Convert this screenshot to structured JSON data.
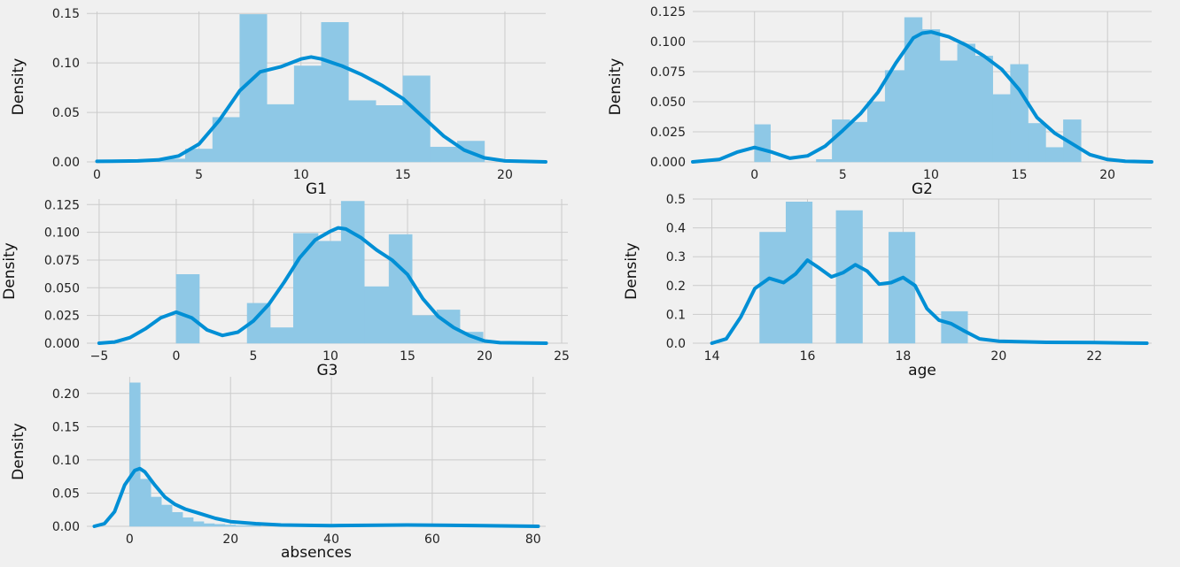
{
  "figure": {
    "background": "#f0f0f0",
    "bar_color": "#8ec8e6",
    "line_color": "#008fd5",
    "grid_color": "#cbcbcb"
  },
  "chart_data": [
    {
      "id": "g1",
      "type": "histogram+kde",
      "xlabel": "G1",
      "ylabel": "Density",
      "xlim": [
        -0.5,
        22
      ],
      "ylim": [
        0,
        0.152
      ],
      "xticks": [
        0,
        5,
        10,
        15,
        20
      ],
      "xtick_labels": [
        "0",
        "5",
        "10",
        "15",
        "20"
      ],
      "yticks": [
        0,
        0.05,
        0.1,
        0.15
      ],
      "ytick_labels": [
        "0.00",
        "0.05",
        "0.10",
        "0.15"
      ],
      "grid": true,
      "bins": [
        {
          "x0": 3,
          "x1": 4.33,
          "h": 0.003
        },
        {
          "x0": 4.33,
          "x1": 5.67,
          "h": 0.013
        },
        {
          "x0": 5.67,
          "x1": 7,
          "h": 0.045
        },
        {
          "x0": 7,
          "x1": 8.33,
          "h": 0.149
        },
        {
          "x0": 8.33,
          "x1": 9.67,
          "h": 0.058
        },
        {
          "x0": 9.67,
          "x1": 11,
          "h": 0.097
        },
        {
          "x0": 11,
          "x1": 12.33,
          "h": 0.141
        },
        {
          "x0": 12.33,
          "x1": 13.67,
          "h": 0.062
        },
        {
          "x0": 13.67,
          "x1": 15,
          "h": 0.057
        },
        {
          "x0": 15,
          "x1": 16.33,
          "h": 0.087
        },
        {
          "x0": 16.33,
          "x1": 17.67,
          "h": 0.015
        },
        {
          "x0": 17.67,
          "x1": 19,
          "h": 0.021
        }
      ],
      "kde": [
        [
          0,
          0.0005
        ],
        [
          2,
          0.001
        ],
        [
          3,
          0.002
        ],
        [
          4,
          0.006
        ],
        [
          5,
          0.018
        ],
        [
          6,
          0.042
        ],
        [
          7,
          0.072
        ],
        [
          8,
          0.091
        ],
        [
          9,
          0.096
        ],
        [
          10,
          0.104
        ],
        [
          10.5,
          0.106
        ],
        [
          11,
          0.104
        ],
        [
          12,
          0.097
        ],
        [
          13,
          0.088
        ],
        [
          14,
          0.077
        ],
        [
          15,
          0.064
        ],
        [
          16,
          0.045
        ],
        [
          17,
          0.026
        ],
        [
          18,
          0.012
        ],
        [
          19,
          0.004
        ],
        [
          20,
          0.001
        ],
        [
          22,
          0
        ]
      ]
    },
    {
      "id": "g2",
      "type": "histogram+kde",
      "xlabel": "G2",
      "ylabel": "Density",
      "xlim": [
        -3.5,
        22.5
      ],
      "ylim": [
        0,
        0.125
      ],
      "xticks": [
        0,
        5,
        10,
        15,
        20
      ],
      "xtick_labels": [
        "0",
        "5",
        "10",
        "15",
        "20"
      ],
      "yticks": [
        0,
        0.025,
        0.05,
        0.075,
        0.1,
        0.125
      ],
      "ytick_labels": [
        "0.000",
        "0.025",
        "0.050",
        "0.075",
        "0.100",
        "0.125"
      ],
      "grid": true,
      "bins": [
        {
          "x0": 0,
          "x1": 0.9,
          "h": 0.031
        },
        {
          "x0": 3.5,
          "x1": 4.4,
          "h": 0.002
        },
        {
          "x0": 4.4,
          "x1": 5.4,
          "h": 0.035
        },
        {
          "x0": 5.4,
          "x1": 6.4,
          "h": 0.033
        },
        {
          "x0": 6.4,
          "x1": 7.4,
          "h": 0.05
        },
        {
          "x0": 7.4,
          "x1": 8.5,
          "h": 0.076
        },
        {
          "x0": 8.5,
          "x1": 9.5,
          "h": 0.12
        },
        {
          "x0": 9.5,
          "x1": 10.5,
          "h": 0.11
        },
        {
          "x0": 10.5,
          "x1": 11.5,
          "h": 0.084
        },
        {
          "x0": 11.5,
          "x1": 12.5,
          "h": 0.098
        },
        {
          "x0": 12.5,
          "x1": 13.5,
          "h": 0.088
        },
        {
          "x0": 13.5,
          "x1": 14.5,
          "h": 0.056
        },
        {
          "x0": 14.5,
          "x1": 15.5,
          "h": 0.081
        },
        {
          "x0": 15.5,
          "x1": 16.5,
          "h": 0.032
        },
        {
          "x0": 16.5,
          "x1": 17.5,
          "h": 0.012
        },
        {
          "x0": 17.5,
          "x1": 18.5,
          "h": 0.035
        }
      ],
      "kde": [
        [
          -3.5,
          0
        ],
        [
          -2,
          0.002
        ],
        [
          -1,
          0.008
        ],
        [
          0,
          0.012
        ],
        [
          1,
          0.008
        ],
        [
          2,
          0.003
        ],
        [
          3,
          0.005
        ],
        [
          4,
          0.013
        ],
        [
          5,
          0.026
        ],
        [
          6,
          0.04
        ],
        [
          7,
          0.058
        ],
        [
          8,
          0.082
        ],
        [
          9,
          0.103
        ],
        [
          9.5,
          0.107
        ],
        [
          10,
          0.108
        ],
        [
          11,
          0.104
        ],
        [
          12,
          0.097
        ],
        [
          13,
          0.088
        ],
        [
          14,
          0.077
        ],
        [
          15,
          0.06
        ],
        [
          16,
          0.037
        ],
        [
          17,
          0.024
        ],
        [
          18,
          0.015
        ],
        [
          19,
          0.006
        ],
        [
          20,
          0.002
        ],
        [
          21,
          0.0005
        ],
        [
          22.5,
          0
        ]
      ]
    },
    {
      "id": "g3",
      "type": "histogram+kde",
      "xlabel": "G3",
      "ylabel": "Density",
      "xlim": [
        -5.8,
        25.4
      ],
      "ylim": [
        0,
        0.13
      ],
      "xticks": [
        -5,
        0,
        5,
        10,
        15,
        20,
        25
      ],
      "xtick_labels": [
        "−5",
        "0",
        "5",
        "10",
        "15",
        "20",
        "25"
      ],
      "yticks": [
        0,
        0.025,
        0.05,
        0.075,
        0.1,
        0.125
      ],
      "ytick_labels": [
        "0.000",
        "0.025",
        "0.050",
        "0.075",
        "0.100",
        "0.125"
      ],
      "grid": true,
      "bins": [
        {
          "x0": 0,
          "x1": 1.5,
          "h": 0.062
        },
        {
          "x0": 4.6,
          "x1": 6.1,
          "h": 0.036
        },
        {
          "x0": 6.1,
          "x1": 7.6,
          "h": 0.014
        },
        {
          "x0": 7.6,
          "x1": 9.2,
          "h": 0.099
        },
        {
          "x0": 9.2,
          "x1": 10.7,
          "h": 0.092
        },
        {
          "x0": 10.7,
          "x1": 12.2,
          "h": 0.128
        },
        {
          "x0": 12.2,
          "x1": 13.8,
          "h": 0.051
        },
        {
          "x0": 13.8,
          "x1": 15.3,
          "h": 0.098
        },
        {
          "x0": 15.3,
          "x1": 16.9,
          "h": 0.025
        },
        {
          "x0": 16.9,
          "x1": 18.4,
          "h": 0.03
        },
        {
          "x0": 18.4,
          "x1": 19.9,
          "h": 0.01
        }
      ],
      "kde": [
        [
          -5,
          0
        ],
        [
          -4,
          0.001
        ],
        [
          -3,
          0.005
        ],
        [
          -2,
          0.013
        ],
        [
          -1,
          0.023
        ],
        [
          0,
          0.028
        ],
        [
          1,
          0.023
        ],
        [
          2,
          0.012
        ],
        [
          3,
          0.007
        ],
        [
          4,
          0.01
        ],
        [
          5,
          0.02
        ],
        [
          6,
          0.035
        ],
        [
          7,
          0.055
        ],
        [
          8,
          0.077
        ],
        [
          9,
          0.093
        ],
        [
          10,
          0.101
        ],
        [
          10.5,
          0.104
        ],
        [
          11,
          0.103
        ],
        [
          12,
          0.095
        ],
        [
          13,
          0.084
        ],
        [
          14,
          0.075
        ],
        [
          15,
          0.062
        ],
        [
          16,
          0.04
        ],
        [
          17,
          0.024
        ],
        [
          18,
          0.014
        ],
        [
          19,
          0.007
        ],
        [
          20,
          0.002
        ],
        [
          21,
          0.0005
        ],
        [
          24,
          0
        ]
      ]
    },
    {
      "id": "age",
      "type": "histogram+kde",
      "xlabel": "age",
      "ylabel": "Density",
      "xlim": [
        13.6,
        23.2
      ],
      "ylim": [
        0,
        0.5
      ],
      "xticks": [
        14,
        16,
        18,
        20,
        22
      ],
      "xtick_labels": [
        "14",
        "16",
        "18",
        "20",
        "22"
      ],
      "yticks": [
        0,
        0.1,
        0.2,
        0.3,
        0.4,
        0.5
      ],
      "ytick_labels": [
        "0.0",
        "0.1",
        "0.2",
        "0.3",
        "0.4",
        "0.5"
      ],
      "grid": true,
      "bins": [
        {
          "x0": 15,
          "x1": 15.55,
          "h": 0.385
        },
        {
          "x0": 15.55,
          "x1": 16.1,
          "h": 0.49
        },
        {
          "x0": 16.6,
          "x1": 17.15,
          "h": 0.46
        },
        {
          "x0": 17.7,
          "x1": 18.25,
          "h": 0.385
        },
        {
          "x0": 18.8,
          "x1": 19.35,
          "h": 0.11
        }
      ],
      "kde": [
        [
          14,
          0
        ],
        [
          14.3,
          0.015
        ],
        [
          14.6,
          0.09
        ],
        [
          14.9,
          0.19
        ],
        [
          15.2,
          0.225
        ],
        [
          15.5,
          0.21
        ],
        [
          15.75,
          0.24
        ],
        [
          16,
          0.288
        ],
        [
          16.25,
          0.26
        ],
        [
          16.5,
          0.23
        ],
        [
          16.75,
          0.245
        ],
        [
          17,
          0.272
        ],
        [
          17.25,
          0.25
        ],
        [
          17.5,
          0.205
        ],
        [
          17.75,
          0.21
        ],
        [
          18,
          0.228
        ],
        [
          18.25,
          0.2
        ],
        [
          18.5,
          0.12
        ],
        [
          18.75,
          0.08
        ],
        [
          19,
          0.068
        ],
        [
          19.25,
          0.045
        ],
        [
          19.6,
          0.015
        ],
        [
          20,
          0.007
        ],
        [
          21,
          0.003
        ],
        [
          22,
          0.002
        ],
        [
          23.1,
          0
        ]
      ]
    },
    {
      "id": "absences",
      "type": "histogram+kde",
      "xlabel": "absences",
      "ylabel": "Density",
      "xlim": [
        -8.5,
        82.5
      ],
      "ylim": [
        0,
        0.225
      ],
      "xticks": [
        0,
        20,
        40,
        60,
        80
      ],
      "xtick_labels": [
        "0",
        "20",
        "40",
        "60",
        "80"
      ],
      "yticks": [
        0,
        0.05,
        0.1,
        0.15,
        0.2
      ],
      "ytick_labels": [
        "0.00",
        "0.05",
        "0.10",
        "0.15",
        "0.20"
      ],
      "grid": true,
      "bins": [
        {
          "x0": 0,
          "x1": 2.1,
          "h": 0.216
        },
        {
          "x0": 2.1,
          "x1": 4.2,
          "h": 0.071
        },
        {
          "x0": 4.2,
          "x1": 6.3,
          "h": 0.044
        },
        {
          "x0": 6.3,
          "x1": 8.4,
          "h": 0.032
        },
        {
          "x0": 8.4,
          "x1": 10.5,
          "h": 0.021
        },
        {
          "x0": 10.5,
          "x1": 12.6,
          "h": 0.013
        },
        {
          "x0": 12.6,
          "x1": 14.7,
          "h": 0.007
        },
        {
          "x0": 14.7,
          "x1": 16.8,
          "h": 0.004
        },
        {
          "x0": 16.8,
          "x1": 18.9,
          "h": 0.003
        },
        {
          "x0": 18.9,
          "x1": 21,
          "h": 0.002
        },
        {
          "x0": 21,
          "x1": 26,
          "h": 0.001
        }
      ],
      "kde": [
        [
          -7,
          0
        ],
        [
          -5,
          0.004
        ],
        [
          -3,
          0.022
        ],
        [
          -1,
          0.062
        ],
        [
          1,
          0.084
        ],
        [
          2,
          0.087
        ],
        [
          3,
          0.082
        ],
        [
          5,
          0.062
        ],
        [
          7,
          0.044
        ],
        [
          9,
          0.033
        ],
        [
          11,
          0.026
        ],
        [
          14,
          0.019
        ],
        [
          17,
          0.012
        ],
        [
          20,
          0.007
        ],
        [
          25,
          0.004
        ],
        [
          30,
          0.002
        ],
        [
          40,
          0.001
        ],
        [
          55,
          0.002
        ],
        [
          70,
          0.001
        ],
        [
          81,
          0
        ]
      ]
    }
  ]
}
